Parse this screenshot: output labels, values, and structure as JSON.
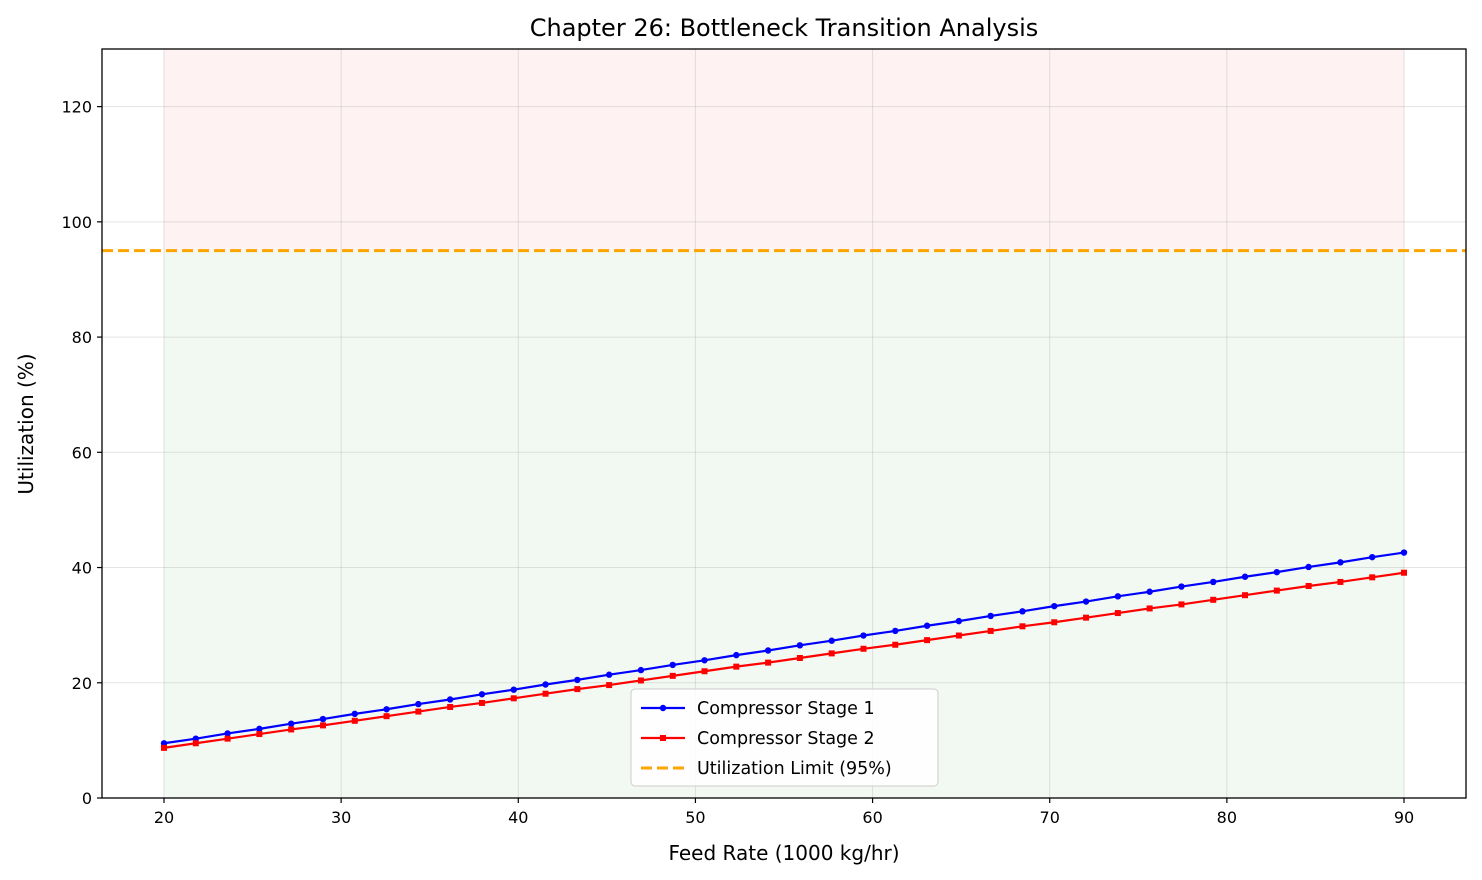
{
  "chart_data": {
    "type": "line",
    "title": "Chapter 26: Bottleneck Transition Analysis",
    "xlabel": "Feed Rate (1000 kg/hr)",
    "ylabel": "Utilization (%)",
    "xlim": [
      16.5,
      93.5
    ],
    "ylim": [
      0,
      130
    ],
    "xticks": [
      20,
      30,
      40,
      50,
      60,
      70,
      80,
      90
    ],
    "yticks": [
      0,
      20,
      40,
      60,
      80,
      100,
      120
    ],
    "grid": true,
    "legend_position": "lower-center",
    "x_start": 20,
    "x_end": 90,
    "series": [
      {
        "name": "Compressor Stage 1",
        "color": "#0000ff",
        "marker": "circle",
        "values": [
          9.5,
          10.3,
          11.2,
          12.0,
          12.9,
          13.7,
          14.6,
          15.4,
          16.3,
          17.1,
          18.0,
          18.8,
          19.7,
          20.5,
          21.4,
          22.2,
          23.1,
          23.9,
          24.8,
          25.6,
          26.5,
          27.3,
          28.2,
          29.0,
          29.9,
          30.7,
          31.6,
          32.4,
          33.3,
          34.1,
          35.0,
          35.8,
          36.7,
          37.5,
          38.4,
          39.2,
          40.1,
          40.9,
          41.8,
          42.6
        ]
      },
      {
        "name": "Compressor Stage 2",
        "color": "#ff0000",
        "marker": "square",
        "values": [
          8.7,
          9.5,
          10.3,
          11.1,
          11.9,
          12.6,
          13.4,
          14.2,
          15.0,
          15.8,
          16.5,
          17.3,
          18.1,
          18.9,
          19.6,
          20.4,
          21.2,
          22.0,
          22.8,
          23.5,
          24.3,
          25.1,
          25.9,
          26.6,
          27.4,
          28.2,
          29.0,
          29.8,
          30.5,
          31.3,
          32.1,
          32.9,
          33.6,
          34.4,
          35.2,
          36.0,
          36.8,
          37.5,
          38.3,
          39.1
        ]
      }
    ],
    "reference_line": {
      "name": "Utilization Limit (95%)",
      "y": 95,
      "color": "#ffa500",
      "style": "dashed"
    },
    "shaded_regions": [
      {
        "ymin": 95,
        "ymax": 130,
        "color": "#ffcccc"
      },
      {
        "ymin": 0,
        "ymax": 95,
        "color": "#cce6cc"
      }
    ]
  }
}
